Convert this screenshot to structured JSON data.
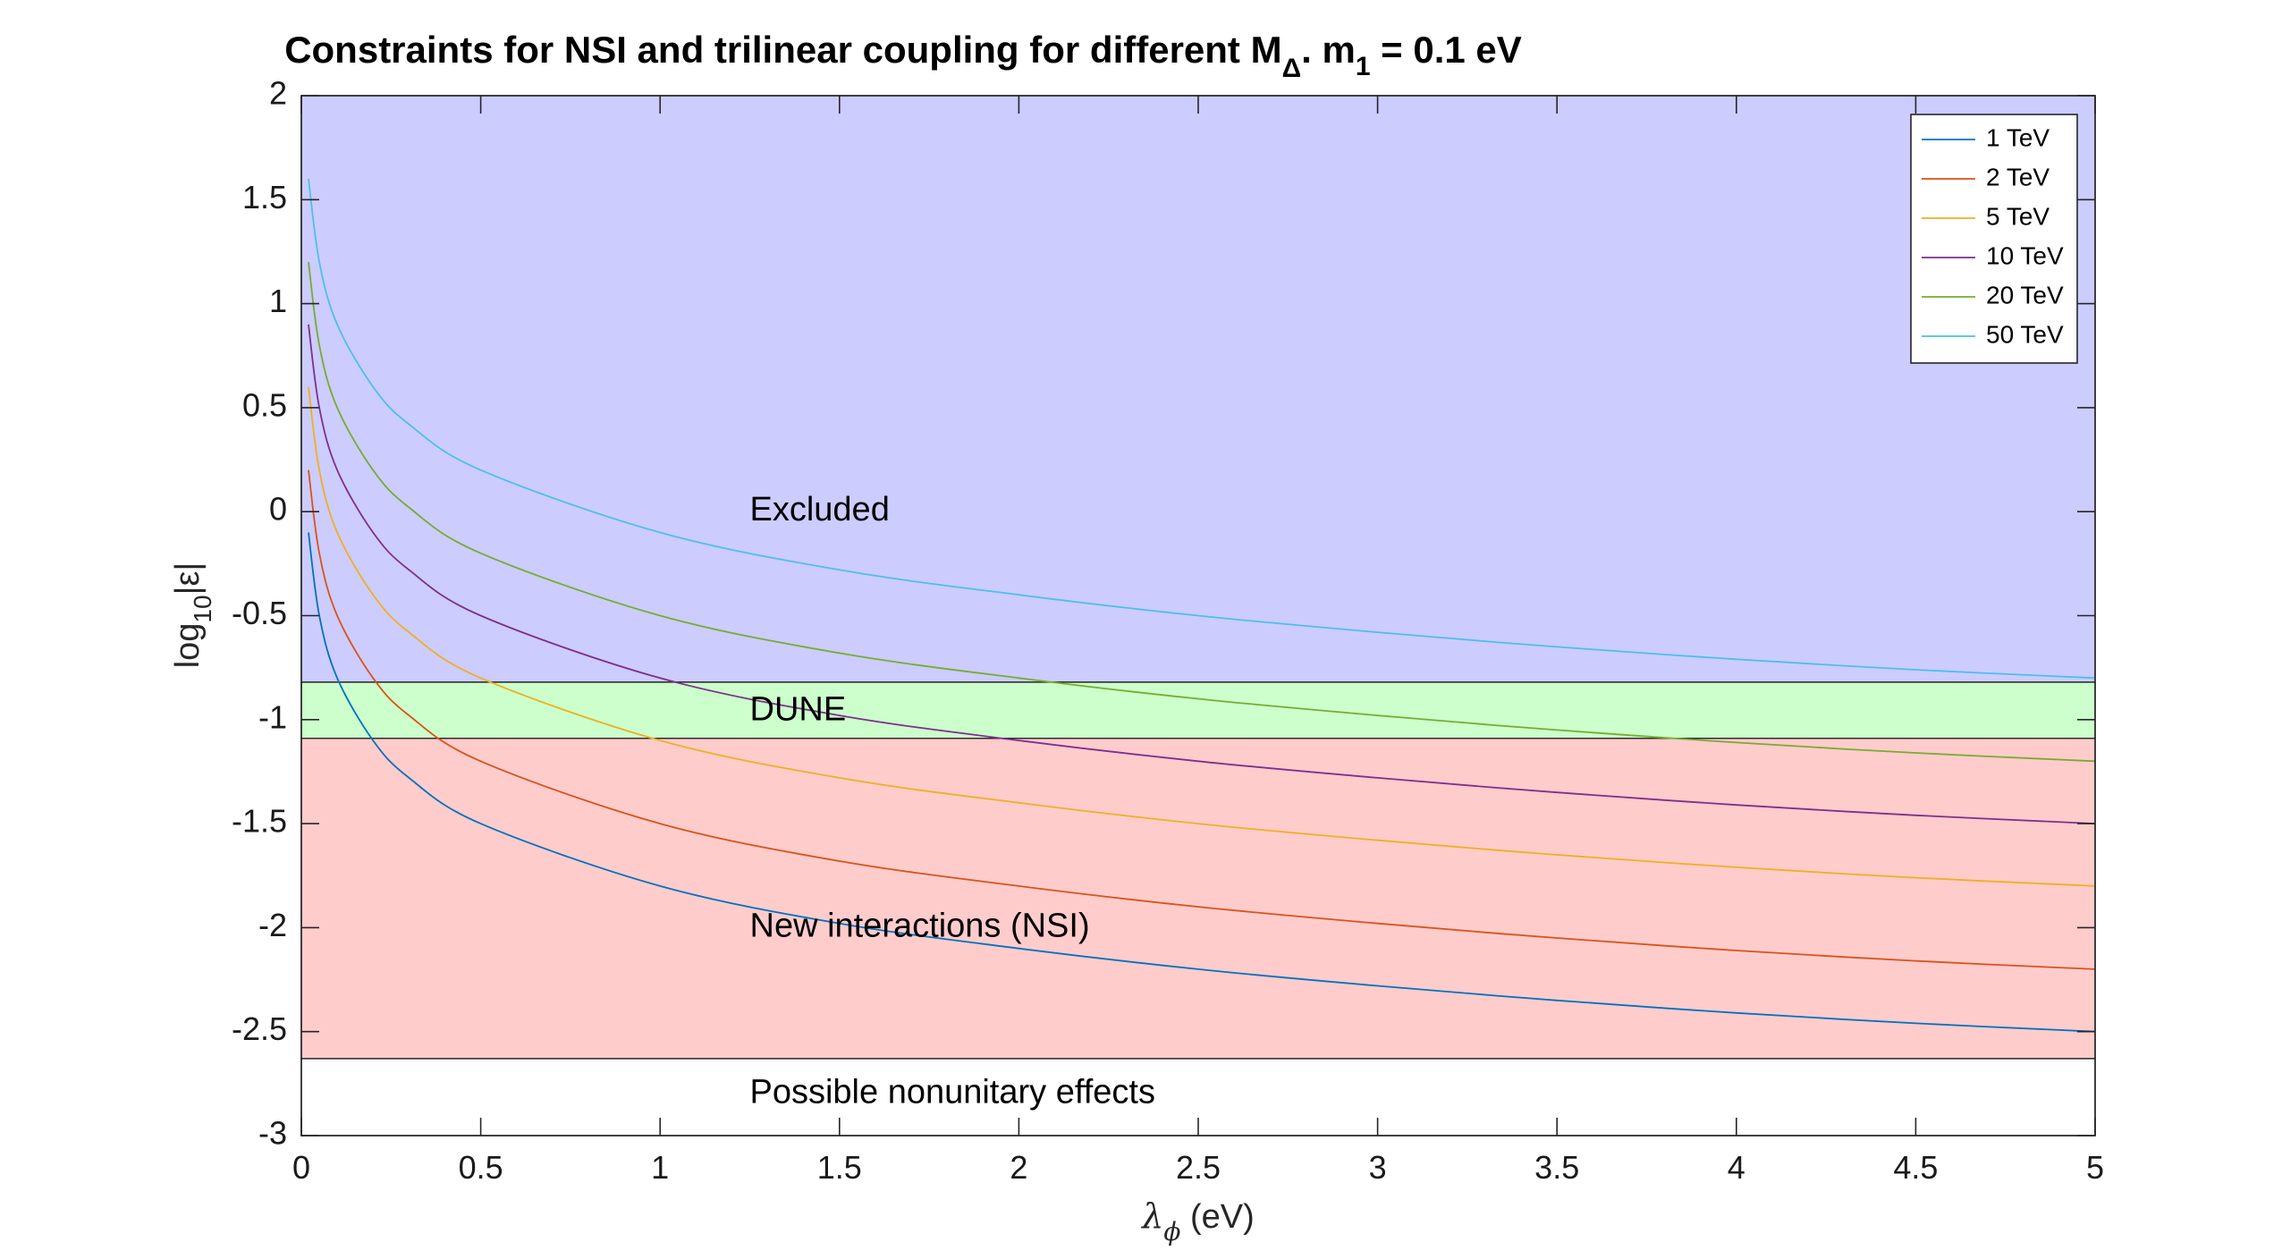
{
  "chart_data": {
    "type": "line",
    "title": {
      "part1": "Constraints for NSI and trilinear coupling for different M",
      "sub1": "Δ",
      "part2": ". m",
      "sub2": "1",
      "part3": " = 0.1 eV"
    },
    "xlabel": {
      "symbol": "λ",
      "sub": "ϕ",
      "unit": " (eV)"
    },
    "ylabel": {
      "part1": "log",
      "sub": "10",
      "part2": "|ε|"
    },
    "xlim": [
      0,
      5
    ],
    "ylim": [
      -3,
      2
    ],
    "xticks": [
      0,
      0.5,
      1,
      1.5,
      2,
      2.5,
      3,
      3.5,
      4,
      4.5,
      5
    ],
    "xtick_labels": [
      "0",
      "0.5",
      "1",
      "1.5",
      "2",
      "2.5",
      "3",
      "3.5",
      "4",
      "4.5",
      "5"
    ],
    "yticks": [
      2,
      1.5,
      1,
      0.5,
      0,
      -0.5,
      -1,
      -1.5,
      -2,
      -2.5,
      -3
    ],
    "ytick_labels": [
      "2",
      "1.5",
      "1",
      "0.5",
      "0",
      "-0.5",
      "-1",
      "-1.5",
      "-2",
      "-2.5",
      "-3"
    ],
    "grid": false,
    "legend_placement": "top-right",
    "regions": [
      {
        "label": "Excluded",
        "y_from": -0.82,
        "y_to": 2,
        "color": "#ccccff",
        "label_x": 1.25,
        "label_y": 0
      },
      {
        "label": "DUNE",
        "y_from": -1.09,
        "y_to": -0.82,
        "color": "#ccffcc",
        "label_x": 1.25,
        "label_y": -0.96
      },
      {
        "label": "New interactions (NSI)",
        "y_from": -2.63,
        "y_to": -1.09,
        "color": "#ffcccc",
        "label_x": 1.25,
        "label_y": -2
      },
      {
        "label": "Possible nonunitary effects",
        "y_from": -3,
        "y_to": -2.63,
        "color": "#ffffff",
        "label_x": 1.25,
        "label_y": -2.8
      }
    ],
    "series": [
      {
        "name": "1 TeV",
        "color": "#0072bd",
        "x": [
          0.02,
          0.05,
          0.1,
          0.2,
          0.3,
          0.5,
          1,
          1.5,
          2,
          2.5,
          3,
          3.5,
          4,
          4.5,
          5
        ],
        "y": [
          -0.1,
          -0.5,
          -0.8,
          -1.1,
          -1.28,
          -1.5,
          -1.8,
          -1.98,
          -2.1,
          -2.2,
          -2.28,
          -2.35,
          -2.41,
          -2.46,
          -2.5
        ]
      },
      {
        "name": "2 TeV",
        "color": "#d95319",
        "x": [
          0.02,
          0.05,
          0.1,
          0.2,
          0.3,
          0.5,
          1,
          1.5,
          2,
          2.5,
          3,
          3.5,
          4,
          4.5,
          5
        ],
        "y": [
          0.2,
          -0.2,
          -0.5,
          -0.8,
          -0.98,
          -1.2,
          -1.5,
          -1.68,
          -1.8,
          -1.9,
          -1.98,
          -2.05,
          -2.11,
          -2.16,
          -2.2
        ]
      },
      {
        "name": "5 TeV",
        "color": "#edb120",
        "x": [
          0.02,
          0.05,
          0.1,
          0.2,
          0.3,
          0.5,
          1,
          1.5,
          2,
          2.5,
          3,
          3.5,
          4,
          4.5,
          5
        ],
        "y": [
          0.6,
          0.2,
          -0.1,
          -0.4,
          -0.58,
          -0.8,
          -1.1,
          -1.28,
          -1.4,
          -1.5,
          -1.58,
          -1.65,
          -1.71,
          -1.76,
          -1.8
        ]
      },
      {
        "name": "10 TeV",
        "color": "#7e2f8e",
        "x": [
          0.02,
          0.05,
          0.1,
          0.2,
          0.3,
          0.5,
          1,
          1.5,
          2,
          2.5,
          3,
          3.5,
          4,
          4.5,
          5
        ],
        "y": [
          0.9,
          0.5,
          0.2,
          -0.1,
          -0.28,
          -0.5,
          -0.8,
          -0.98,
          -1.1,
          -1.2,
          -1.28,
          -1.35,
          -1.41,
          -1.46,
          -1.5
        ]
      },
      {
        "name": "20 TeV",
        "color": "#77ac30",
        "x": [
          0.02,
          0.05,
          0.1,
          0.2,
          0.3,
          0.5,
          1,
          1.5,
          2,
          2.5,
          3,
          3.5,
          4,
          4.5,
          5
        ],
        "y": [
          1.2,
          0.8,
          0.5,
          0.2,
          0.02,
          -0.2,
          -0.5,
          -0.68,
          -0.8,
          -0.9,
          -0.98,
          -1.05,
          -1.11,
          -1.16,
          -1.2
        ]
      },
      {
        "name": "50 TeV",
        "color": "#4dbeee",
        "x": [
          0.02,
          0.05,
          0.1,
          0.2,
          0.3,
          0.5,
          1,
          1.5,
          2,
          2.5,
          3,
          3.5,
          4,
          4.5,
          5
        ],
        "y": [
          1.6,
          1.2,
          0.9,
          0.6,
          0.42,
          0.2,
          -0.1,
          -0.28,
          -0.4,
          -0.5,
          -0.58,
          -0.65,
          -0.71,
          -0.76,
          -0.8
        ]
      }
    ]
  }
}
